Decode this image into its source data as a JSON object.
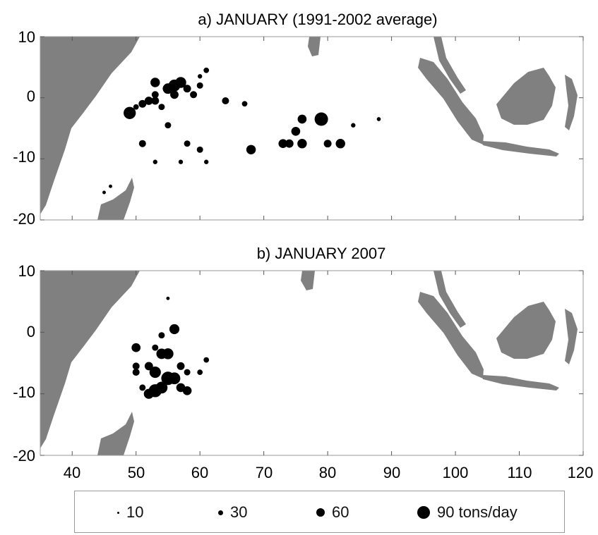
{
  "colors": {
    "land": "#808080",
    "ocean": "#ffffff",
    "dots": "#000000",
    "frame": "#9a9a9a"
  },
  "chart_data": [
    {
      "type": "scatter",
      "title": "a) JANUARY (1991-2002 average)",
      "xlim": [
        35,
        120
      ],
      "ylim": [
        -20,
        10
      ],
      "yticks": [
        "10",
        "0",
        "-10",
        "-20"
      ],
      "size_legend_units": "tons/day",
      "points": [
        {
          "x": 50,
          "y": -1.5,
          "v": 15
        },
        {
          "x": 51,
          "y": -1,
          "v": 30
        },
        {
          "x": 52,
          "y": -0.5,
          "v": 35
        },
        {
          "x": 53,
          "y": -0.5,
          "v": 30
        },
        {
          "x": 53,
          "y": 2.5,
          "v": 45
        },
        {
          "x": 53,
          "y": 0.5,
          "v": 25
        },
        {
          "x": 54,
          "y": -1.5,
          "v": 20
        },
        {
          "x": 55,
          "y": 1.5,
          "v": 55
        },
        {
          "x": 56,
          "y": 2,
          "v": 70
        },
        {
          "x": 57,
          "y": 2.5,
          "v": 60
        },
        {
          "x": 56,
          "y": 0.5,
          "v": 35
        },
        {
          "x": 58,
          "y": 1.5,
          "v": 30
        },
        {
          "x": 59,
          "y": 0.5,
          "v": 25
        },
        {
          "x": 60,
          "y": 2,
          "v": 20
        },
        {
          "x": 61,
          "y": 4.5,
          "v": 15
        },
        {
          "x": 60,
          "y": 3.5,
          "v": 10
        },
        {
          "x": 49,
          "y": -2.5,
          "v": 75
        },
        {
          "x": 51,
          "y": -7.5,
          "v": 25
        },
        {
          "x": 55,
          "y": -4.5,
          "v": 20
        },
        {
          "x": 58,
          "y": -7.5,
          "v": 20
        },
        {
          "x": 60,
          "y": -8.5,
          "v": 20
        },
        {
          "x": 64,
          "y": -0.5,
          "v": 25
        },
        {
          "x": 67,
          "y": -1,
          "v": 15
        },
        {
          "x": 68,
          "y": -8.5,
          "v": 45
        },
        {
          "x": 73,
          "y": -7.5,
          "v": 40
        },
        {
          "x": 74,
          "y": -7.5,
          "v": 35
        },
        {
          "x": 76,
          "y": -7.5,
          "v": 45
        },
        {
          "x": 76,
          "y": -3.5,
          "v": 40
        },
        {
          "x": 75,
          "y": -5.5,
          "v": 40
        },
        {
          "x": 79,
          "y": -3.5,
          "v": 90
        },
        {
          "x": 80,
          "y": -7.5,
          "v": 30
        },
        {
          "x": 82,
          "y": -7.5,
          "v": 45
        },
        {
          "x": 84,
          "y": -4.5,
          "v": 10
        },
        {
          "x": 88,
          "y": -3.5,
          "v": 8
        },
        {
          "x": 45,
          "y": -15.5,
          "v": 6
        },
        {
          "x": 46,
          "y": -14.5,
          "v": 6
        },
        {
          "x": 53,
          "y": -10.5,
          "v": 10
        },
        {
          "x": 57,
          "y": -10.5,
          "v": 10
        },
        {
          "x": 61,
          "y": -10.5,
          "v": 10
        }
      ]
    },
    {
      "type": "scatter",
      "title": "b) JANUARY 2007",
      "xlim": [
        35,
        120
      ],
      "ylim": [
        -20,
        10
      ],
      "yticks": [
        "10",
        "0",
        "-10",
        "-20"
      ],
      "xticks": [
        "40",
        "50",
        "60",
        "70",
        "80",
        "90",
        "100",
        "110",
        "120"
      ],
      "size_legend_units": "tons/day",
      "points": [
        {
          "x": 56,
          "y": 0.5,
          "v": 50
        },
        {
          "x": 54,
          "y": -0.5,
          "v": 20
        },
        {
          "x": 50,
          "y": -2.5,
          "v": 40
        },
        {
          "x": 53,
          "y": -2.5,
          "v": 20
        },
        {
          "x": 54,
          "y": -3.5,
          "v": 55
        },
        {
          "x": 55,
          "y": -3.5,
          "v": 60
        },
        {
          "x": 52,
          "y": -5.5,
          "v": 35
        },
        {
          "x": 57,
          "y": -5.5,
          "v": 30
        },
        {
          "x": 53,
          "y": -6.5,
          "v": 65
        },
        {
          "x": 55,
          "y": -7.5,
          "v": 90
        },
        {
          "x": 56,
          "y": -7.5,
          "v": 70
        },
        {
          "x": 53,
          "y": -9.5,
          "v": 85
        },
        {
          "x": 54,
          "y": -9,
          "v": 70
        },
        {
          "x": 52,
          "y": -10,
          "v": 50
        },
        {
          "x": 57,
          "y": -9,
          "v": 40
        },
        {
          "x": 58,
          "y": -9.5,
          "v": 40
        },
        {
          "x": 50,
          "y": -5.5,
          "v": 25
        },
        {
          "x": 50,
          "y": -6.5,
          "v": 25
        },
        {
          "x": 51,
          "y": -9,
          "v": 20
        },
        {
          "x": 58,
          "y": -6.5,
          "v": 20
        },
        {
          "x": 60,
          "y": -6.5,
          "v": 15
        },
        {
          "x": 61,
          "y": -4.5,
          "v": 15
        },
        {
          "x": 55,
          "y": 5.5,
          "v": 6
        }
      ]
    }
  ],
  "legend": {
    "items": [
      {
        "value": 10,
        "label": "10"
      },
      {
        "value": 30,
        "label": "30"
      },
      {
        "value": 60,
        "label": "60"
      },
      {
        "value": 90,
        "label": "90 tons/day"
      }
    ]
  }
}
